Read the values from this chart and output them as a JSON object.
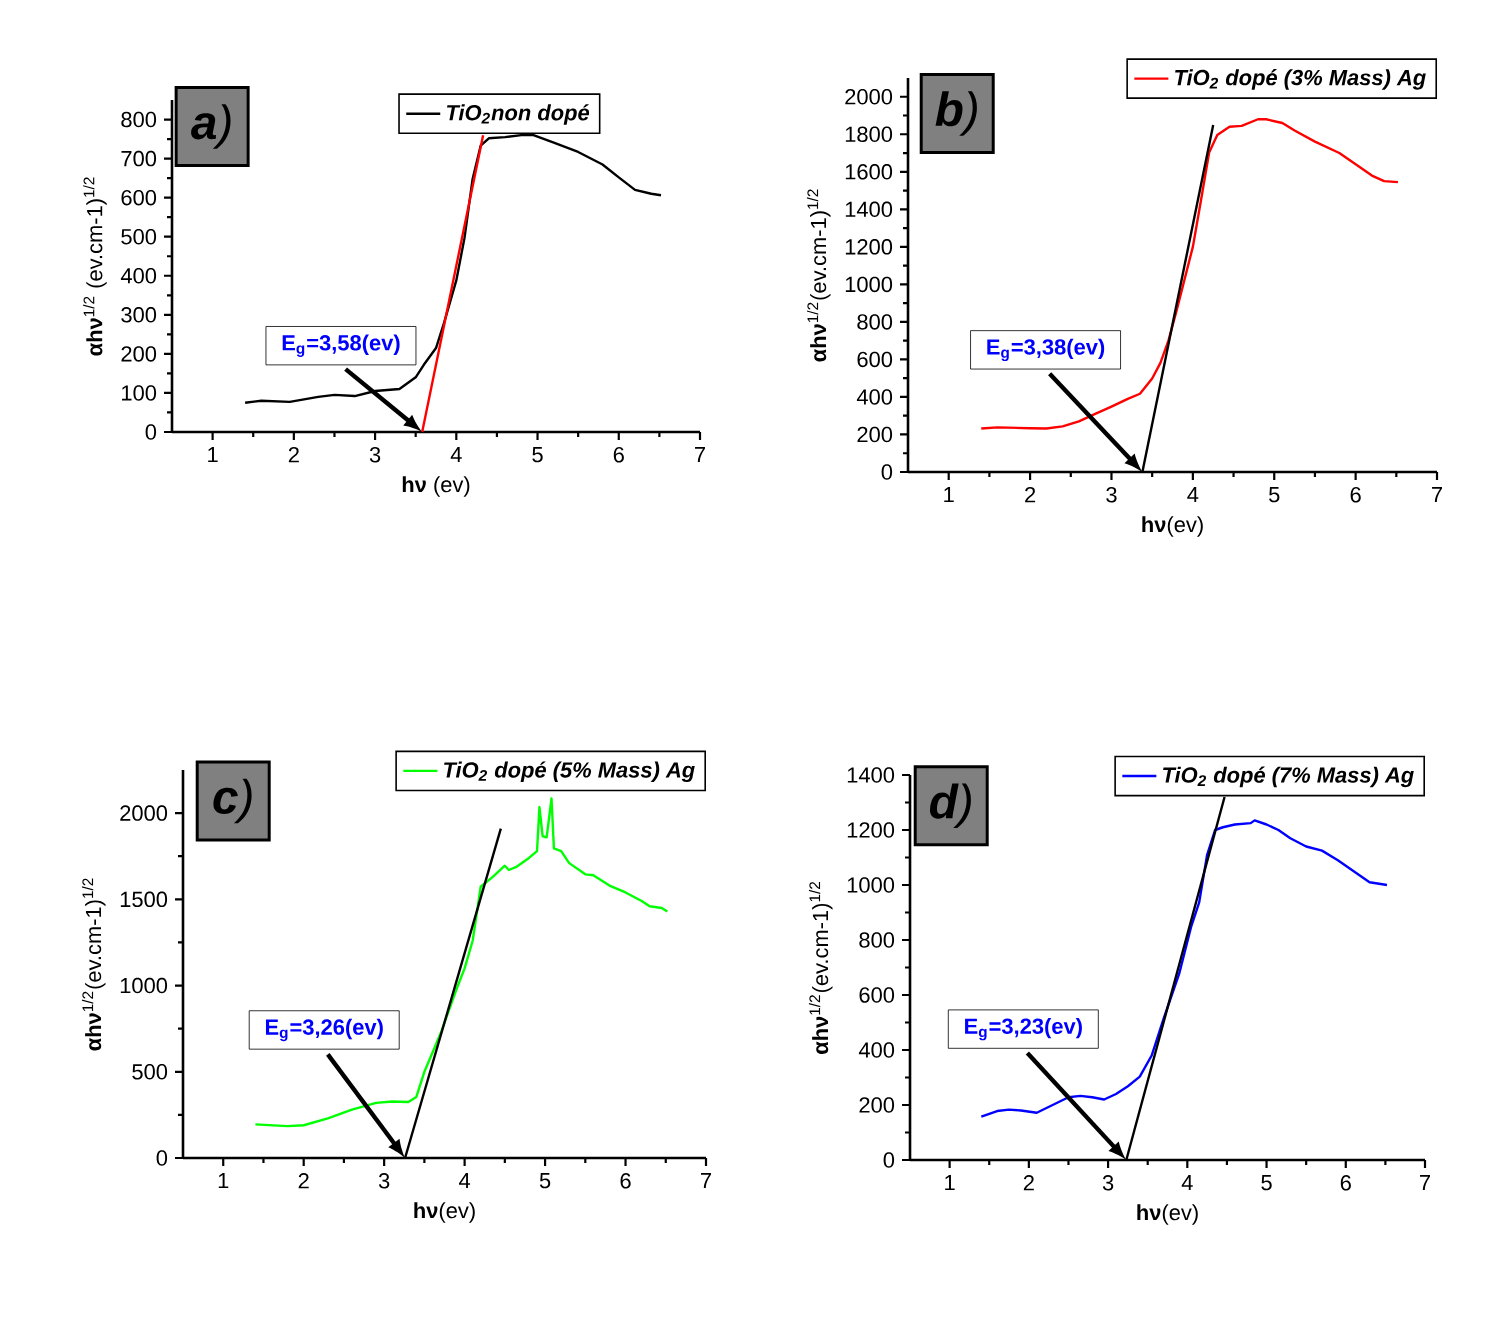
{
  "chart_data": [
    {
      "type": "line",
      "xlabel": "**hν** (ev)",
      "ylabel": "**αhν**$^{1/2}$ (ev.cm-1)$^{1/2}$",
      "xlim": [
        0.5,
        7
      ],
      "ylim": [
        0,
        850
      ],
      "xticks": [
        1,
        2,
        3,
        4,
        5,
        6,
        7
      ],
      "yticks": [
        0,
        100,
        200,
        300,
        400,
        500,
        600,
        700,
        800
      ],
      "legend": "top",
      "series": [
        {
          "name": "TiO$_{2}$non dopé",
          "color": "#000000",
          "x": [
            1.4,
            1.6,
            1.95,
            2.3,
            2.5,
            2.75,
            3.0,
            3.3,
            3.5,
            3.6,
            3.75,
            3.85,
            4.0,
            4.1,
            4.2,
            4.3,
            4.4,
            4.6,
            4.8,
            4.95,
            5.2,
            5.5,
            5.8,
            6.0,
            6.2,
            6.4,
            6.52
          ],
          "values": [
            75,
            80,
            77,
            90,
            95,
            92,
            105,
            110,
            140,
            172,
            215,
            280,
            388,
            496,
            647,
            733,
            752,
            755,
            760,
            760,
            741,
            717,
            685,
            652,
            620,
            610,
            606
          ]
        },
        {
          "type": "line",
          "color": "#ff0000",
          "x": [
            3.58,
            4.33
          ],
          "values": [
            0,
            760
          ]
        }
      ],
      "annotations": [
        "**a**)",
        "E$_{g}$=3,58(ev)"
      ]
    },
    {
      "type": "line",
      "xlabel": "**hν**(ev)",
      "ylabel": "**αhν**$^{1/2}$(ev.cm-1)$^{1/2}$",
      "xlim": [
        0.5,
        7
      ],
      "ylim": [
        0,
        2100
      ],
      "xticks": [
        1,
        2,
        3,
        4,
        5,
        6,
        7
      ],
      "yticks": [
        0,
        200,
        400,
        600,
        800,
        1000,
        1200,
        1400,
        1600,
        1800,
        2000
      ],
      "legend": "top right",
      "series": [
        {
          "name": "TiO$_{2}$ dopé (3% Mass) Ag",
          "color": "#ff0000",
          "x": [
            1.4,
            1.6,
            2.0,
            2.2,
            2.4,
            2.6,
            2.8,
            3.0,
            3.2,
            3.35,
            3.5,
            3.6,
            3.7,
            3.8,
            3.9,
            4.0,
            4.1,
            4.2,
            4.3,
            4.45,
            4.6,
            4.8,
            4.9,
            5.1,
            5.25,
            5.5,
            5.8,
            6.0,
            6.2,
            6.35,
            6.52
          ],
          "values": [
            232,
            238,
            233,
            232,
            243,
            270,
            310,
            348,
            390,
            417,
            498,
            580,
            700,
            860,
            1030,
            1200,
            1448,
            1703,
            1796,
            1840,
            1845,
            1880,
            1880,
            1860,
            1820,
            1761,
            1700,
            1640,
            1580,
            1550,
            1545
          ]
        },
        {
          "type": "line",
          "color": "#000000",
          "x": [
            3.38,
            4.25
          ],
          "values": [
            0,
            1850
          ]
        }
      ],
      "annotations": [
        "**b**)",
        "E$_{g}$=3,38(ev)"
      ]
    },
    {
      "type": "line",
      "xlabel": "**hν**(ev)",
      "ylabel": "**αhν**$^{1/2}$(ev.cm-1)$^{1/2}$",
      "xlim": [
        0.5,
        7
      ],
      "ylim": [
        0,
        2250
      ],
      "xticks": [
        1,
        2,
        3,
        4,
        5,
        6,
        7
      ],
      "yticks": [
        0,
        500,
        1000,
        1500,
        2000
      ],
      "legend": "top right",
      "series": [
        {
          "name": "TiO$_{2}$ dopé (5% Mass) Ag",
          "color": "#00ff00",
          "x": [
            1.4,
            1.8,
            2.0,
            2.3,
            2.6,
            2.9,
            3.1,
            3.3,
            3.4,
            3.5,
            3.7,
            3.9,
            4.0,
            4.1,
            4.2,
            4.35,
            4.5,
            4.55,
            4.65,
            4.8,
            4.9,
            4.93,
            4.97,
            5.02,
            5.08,
            5.11,
            5.2,
            5.3,
            5.5,
            5.6,
            5.8,
            6.0,
            6.2,
            6.3,
            6.45,
            6.52
          ],
          "values": [
            195,
            185,
            190,
            230,
            280,
            320,
            328,
            325,
            354,
            500,
            720,
            980,
            1100,
            1260,
            1573,
            1630,
            1695,
            1670,
            1690,
            1740,
            1780,
            2035,
            1865,
            1860,
            2085,
            1795,
            1780,
            1710,
            1645,
            1640,
            1580,
            1540,
            1490,
            1460,
            1450,
            1430
          ]
        },
        {
          "type": "line",
          "color": "#000000",
          "x": [
            3.26,
            4.45
          ],
          "values": [
            0,
            1910
          ]
        }
      ],
      "annotations": [
        "**c**)",
        "E$_{g}$=3,26(ev)"
      ]
    },
    {
      "type": "line",
      "xlabel": "**hν**(ev)",
      "ylabel": "**αhν**$^{1/2}$(ev.cm-1)$^{1/2}$",
      "xlim": [
        0.5,
        7
      ],
      "ylim": [
        0,
        1400
      ],
      "xticks": [
        1,
        2,
        3,
        4,
        5,
        6,
        7
      ],
      "yticks": [
        0,
        200,
        400,
        600,
        800,
        1000,
        1200,
        1400
      ],
      "legend": "top right",
      "series": [
        {
          "name": "TiO$_{2}$ dopé (7% Mass) Ag",
          "color": "#0000ff",
          "x": [
            1.4,
            1.6,
            1.75,
            1.9,
            2.1,
            2.3,
            2.5,
            2.65,
            2.8,
            2.95,
            3.1,
            3.25,
            3.4,
            3.55,
            3.7,
            3.9,
            4.05,
            4.15,
            4.25,
            4.35,
            4.45,
            4.6,
            4.8,
            4.85,
            5.0,
            5.15,
            5.3,
            5.5,
            5.7,
            5.9,
            6.1,
            6.3,
            6.52
          ],
          "values": [
            158,
            178,
            183,
            180,
            172,
            200,
            228,
            233,
            228,
            220,
            240,
            268,
            303,
            380,
            513,
            680,
            850,
            937,
            1110,
            1200,
            1210,
            1220,
            1225,
            1235,
            1220,
            1200,
            1170,
            1140,
            1125,
            1090,
            1050,
            1010,
            1000
          ]
        },
        {
          "type": "line",
          "color": "#000000",
          "x": [
            3.23,
            4.47
          ],
          "values": [
            0,
            1320
          ]
        }
      ],
      "annotations": [
        "**d**)",
        "E$_{g}$=3,23(ev)"
      ]
    }
  ]
}
